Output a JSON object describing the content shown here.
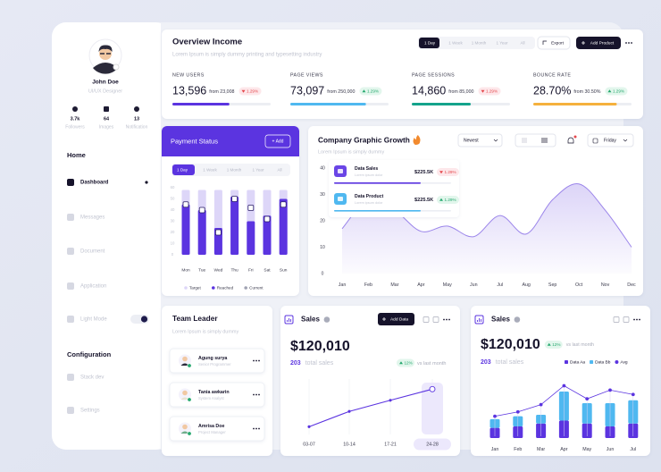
{
  "sidebar": {
    "name": "John Doe",
    "role": "UI/UX Designer",
    "stats": [
      {
        "value": "3.7k",
        "label": "Followers"
      },
      {
        "value": "64",
        "label": "Images"
      },
      {
        "value": "13",
        "label": "Notification"
      }
    ],
    "sections": [
      {
        "title": "Home",
        "items": [
          "Dashboard",
          "Messages",
          "Document",
          "Application",
          "Light Mode"
        ]
      },
      {
        "title": "Configuration",
        "items": [
          "Stack dev",
          "Settings"
        ]
      }
    ]
  },
  "overview": {
    "title": "Overview Income",
    "subtitle": "Lorem Ipsum is simply dummy printing and typesetting industry",
    "periods": [
      "1 Day",
      "1 Week",
      "1 Month",
      "1 Year",
      "All"
    ],
    "export": "Export",
    "add": "Add Product",
    "metrics": [
      {
        "label": "NEW USERS",
        "value": "13,596",
        "from": "from 23,008",
        "change": "1.29%",
        "trend": "down",
        "progress": 58,
        "color": "#5b34e0"
      },
      {
        "label": "PAGE VIEWS",
        "value": "73,097",
        "from": "from 250,000",
        "change": "1.29%",
        "trend": "up",
        "progress": 77,
        "color": "#4fb8f0"
      },
      {
        "label": "PAGE SESSIONS",
        "value": "14,860",
        "from": "from 85,000",
        "change": "1.29%",
        "trend": "down",
        "progress": 60,
        "color": "#14a38b"
      },
      {
        "label": "BOUNCE RATE",
        "value": "28.70%",
        "from": "from 30.50%",
        "change": "1.29%",
        "trend": "up",
        "progress": 85,
        "color": "#f5b13d"
      }
    ]
  },
  "payment": {
    "title": "Payment Status",
    "add": "+ Add",
    "periods": [
      "1 Day",
      "1 Week",
      "1 Month",
      "1 Year",
      "All"
    ],
    "chart": {
      "type": "bar",
      "categories": [
        "Mon",
        "Tue",
        "Wed",
        "Thu",
        "Fri",
        "Sat",
        "Sun"
      ],
      "ylim": [
        0,
        60
      ],
      "yticks": [
        0,
        10,
        20,
        30,
        40,
        50,
        60
      ],
      "series": [
        {
          "name": "Target",
          "color": "#ddd6f8",
          "values": [
            58,
            58,
            58,
            58,
            58,
            58,
            58
          ]
        },
        {
          "name": "Reached",
          "color": "#5b34e0",
          "values": [
            45,
            40,
            24,
            52,
            30,
            35,
            50
          ]
        },
        {
          "name": "Current",
          "color": "#c4c1d2",
          "values": [
            45,
            40,
            20,
            50,
            42,
            32,
            45
          ]
        }
      ]
    }
  },
  "growth": {
    "title": "Company Graphic Growth",
    "subtitle": "Lorem Ipsum is simply dummy",
    "sort": "Newest",
    "day": "Friday",
    "tooltip": [
      {
        "name": "Data Sales",
        "note": "Lorem ipsum dolor",
        "amount": "$225.5K",
        "change": "1.29%",
        "trend": "down"
      },
      {
        "name": "Data Product",
        "note": "Lorem ipsum dolor",
        "amount": "$225.5K",
        "change": "1.29%",
        "trend": "up"
      }
    ],
    "chart": {
      "type": "line",
      "categories": [
        "Jan",
        "Feb",
        "Mar",
        "Apr",
        "May",
        "Jun",
        "Jul",
        "Aug",
        "Sep",
        "Oct",
        "Nov",
        "Dec"
      ],
      "values": [
        17,
        28,
        24,
        16,
        18,
        14,
        22,
        15,
        28,
        34,
        24,
        10
      ],
      "color": "#9b85ea",
      "ylim": [
        0,
        40
      ],
      "yticks": [
        0,
        10,
        20,
        30,
        40
      ]
    }
  },
  "team": {
    "title": "Team Leader",
    "subtitle": "Lorem Ipsum is simply dummy",
    "members": [
      {
        "name": "Agung surya",
        "role": "Senior Programmer"
      },
      {
        "name": "Tania awkarin",
        "role": "System Analyst"
      },
      {
        "name": "Amrisa Doe",
        "role": "Project Manager"
      }
    ]
  },
  "sales": {
    "title": "Sales",
    "add": "Add Data",
    "amount": "$120,010",
    "count": "203",
    "count_label": "total sales",
    "change": "12%",
    "compare": "vs last month",
    "chart": {
      "type": "line",
      "categories": [
        "03-07",
        "10-14",
        "17-21",
        "24-28"
      ],
      "values": [
        3,
        14,
        22,
        30
      ],
      "ylim": [
        0,
        36
      ],
      "color": "#5b34e0"
    }
  },
  "sales_bars": {
    "title": "Sales",
    "amount": "$120,010",
    "change": "12%",
    "compare": "vs last month",
    "count": "203",
    "count_label": "total sales",
    "chart": {
      "type": "bar",
      "stacked": true,
      "categories": [
        "Jan",
        "Feb",
        "Mar",
        "Apr",
        "May",
        "Jun",
        "Jul"
      ],
      "ylim": [
        0,
        40
      ],
      "series": [
        {
          "name": "Data Aa",
          "color": "#5b34e0",
          "values": [
            7,
            8,
            10,
            12,
            10,
            8,
            10
          ]
        },
        {
          "name": "Data Bb",
          "color": "#4fb8f0",
          "values": [
            6,
            7,
            6,
            20,
            14,
            16,
            16
          ]
        },
        {
          "name": "Avg",
          "type": "line",
          "color": "#5b34e0",
          "values": [
            15,
            18,
            23,
            36,
            27,
            33,
            30
          ]
        }
      ]
    }
  }
}
